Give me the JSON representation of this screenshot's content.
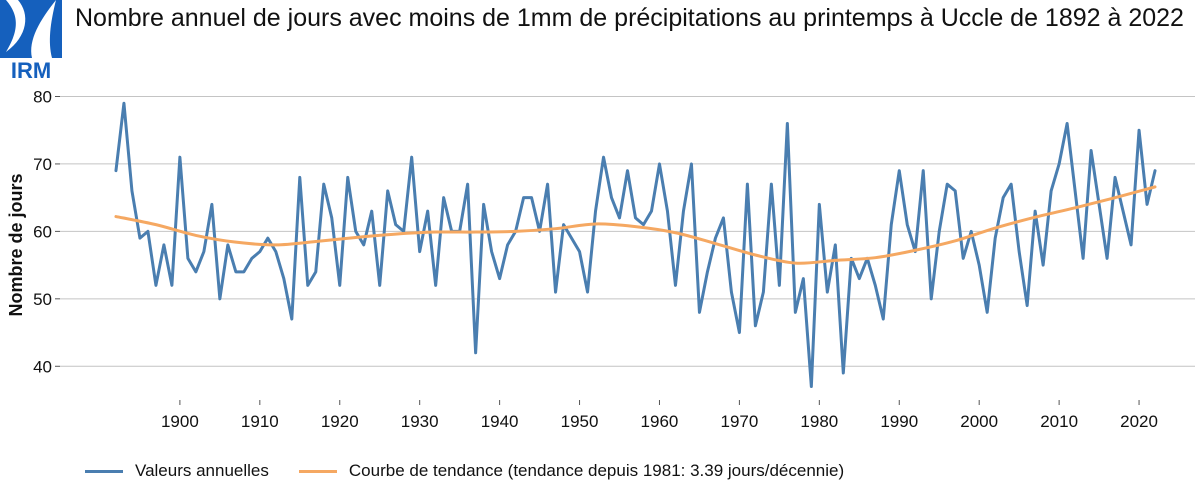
{
  "logo": {
    "text": "IRM",
    "color": "#1560bd"
  },
  "chart_data": {
    "type": "line",
    "title": "Nombre annuel de jours avec moins de 1mm de précipitations au printemps à Uccle de 1892 à 2022",
    "xlabel": "",
    "ylabel": "Nombre de jours",
    "xlim": [
      1885,
      2027
    ],
    "ylim": [
      35,
      82
    ],
    "yticks": [
      40,
      50,
      60,
      70,
      80
    ],
    "xticks": [
      1900,
      1910,
      1920,
      1930,
      1940,
      1950,
      1960,
      1970,
      1980,
      1990,
      2000,
      2010,
      2020
    ],
    "grid": "horizontal",
    "legend_position": "bottom",
    "series": [
      {
        "name": "Valeurs annuelles",
        "color": "#4a7eb0",
        "x": [
          1892,
          1893,
          1894,
          1895,
          1896,
          1897,
          1898,
          1899,
          1900,
          1901,
          1902,
          1903,
          1904,
          1905,
          1906,
          1907,
          1908,
          1909,
          1910,
          1911,
          1912,
          1913,
          1914,
          1915,
          1916,
          1917,
          1918,
          1919,
          1920,
          1921,
          1922,
          1923,
          1924,
          1925,
          1926,
          1927,
          1928,
          1929,
          1930,
          1931,
          1932,
          1933,
          1934,
          1935,
          1936,
          1937,
          1938,
          1939,
          1940,
          1941,
          1942,
          1943,
          1944,
          1945,
          1946,
          1947,
          1948,
          1949,
          1950,
          1951,
          1952,
          1953,
          1954,
          1955,
          1956,
          1957,
          1958,
          1959,
          1960,
          1961,
          1962,
          1963,
          1964,
          1965,
          1966,
          1967,
          1968,
          1969,
          1970,
          1971,
          1972,
          1973,
          1974,
          1975,
          1976,
          1977,
          1978,
          1979,
          1980,
          1981,
          1982,
          1983,
          1984,
          1985,
          1986,
          1987,
          1988,
          1989,
          1990,
          1991,
          1992,
          1993,
          1994,
          1995,
          1996,
          1997,
          1998,
          1999,
          2000,
          2001,
          2002,
          2003,
          2004,
          2005,
          2006,
          2007,
          2008,
          2009,
          2010,
          2011,
          2012,
          2013,
          2014,
          2015,
          2016,
          2017,
          2018,
          2019,
          2020,
          2021,
          2022
        ],
        "values": [
          69,
          79,
          66,
          59,
          60,
          52,
          58,
          52,
          71,
          56,
          54,
          57,
          64,
          50,
          58,
          54,
          54,
          56,
          57,
          59,
          57,
          53,
          47,
          68,
          52,
          54,
          67,
          62,
          52,
          68,
          60,
          58,
          63,
          52,
          66,
          61,
          60,
          71,
          57,
          63,
          52,
          65,
          60,
          60,
          67,
          42,
          64,
          57,
          53,
          58,
          60,
          65,
          65,
          60,
          67,
          51,
          61,
          59,
          57,
          51,
          63,
          71,
          65,
          62,
          69,
          62,
          61,
          63,
          70,
          63,
          52,
          63,
          70,
          48,
          54,
          59,
          62,
          51,
          45,
          67,
          46,
          51,
          67,
          52,
          76,
          48,
          53,
          37,
          64,
          51,
          58,
          39,
          56,
          53,
          56,
          52,
          47,
          61,
          69,
          61,
          57,
          69,
          50,
          60,
          67,
          66,
          56,
          60,
          55,
          48,
          59,
          65,
          67,
          57,
          49,
          63,
          55,
          66,
          70,
          76,
          66,
          56,
          72,
          64,
          56,
          68,
          63,
          58,
          75,
          64,
          69
        ]
      },
      {
        "name": "Courbe de tendance (tendance depuis 1981: 3.39 jours/décennie)",
        "color": "#f5a862",
        "x": [
          1892,
          1897,
          1902,
          1907,
          1912,
          1917,
          1922,
          1927,
          1932,
          1937,
          1942,
          1947,
          1952,
          1957,
          1962,
          1967,
          1972,
          1977,
          1982,
          1987,
          1992,
          1997,
          2002,
          2007,
          2012,
          2017,
          2022
        ],
        "values": [
          62.2,
          61.0,
          59.4,
          58.4,
          58.0,
          58.5,
          59.1,
          59.6,
          59.9,
          59.9,
          60.0,
          60.4,
          61.1,
          60.7,
          59.8,
          58.2,
          56.5,
          55.3,
          55.7,
          56.1,
          57.2,
          58.6,
          60.5,
          62.1,
          63.5,
          65.0,
          66.6
        ]
      }
    ]
  }
}
